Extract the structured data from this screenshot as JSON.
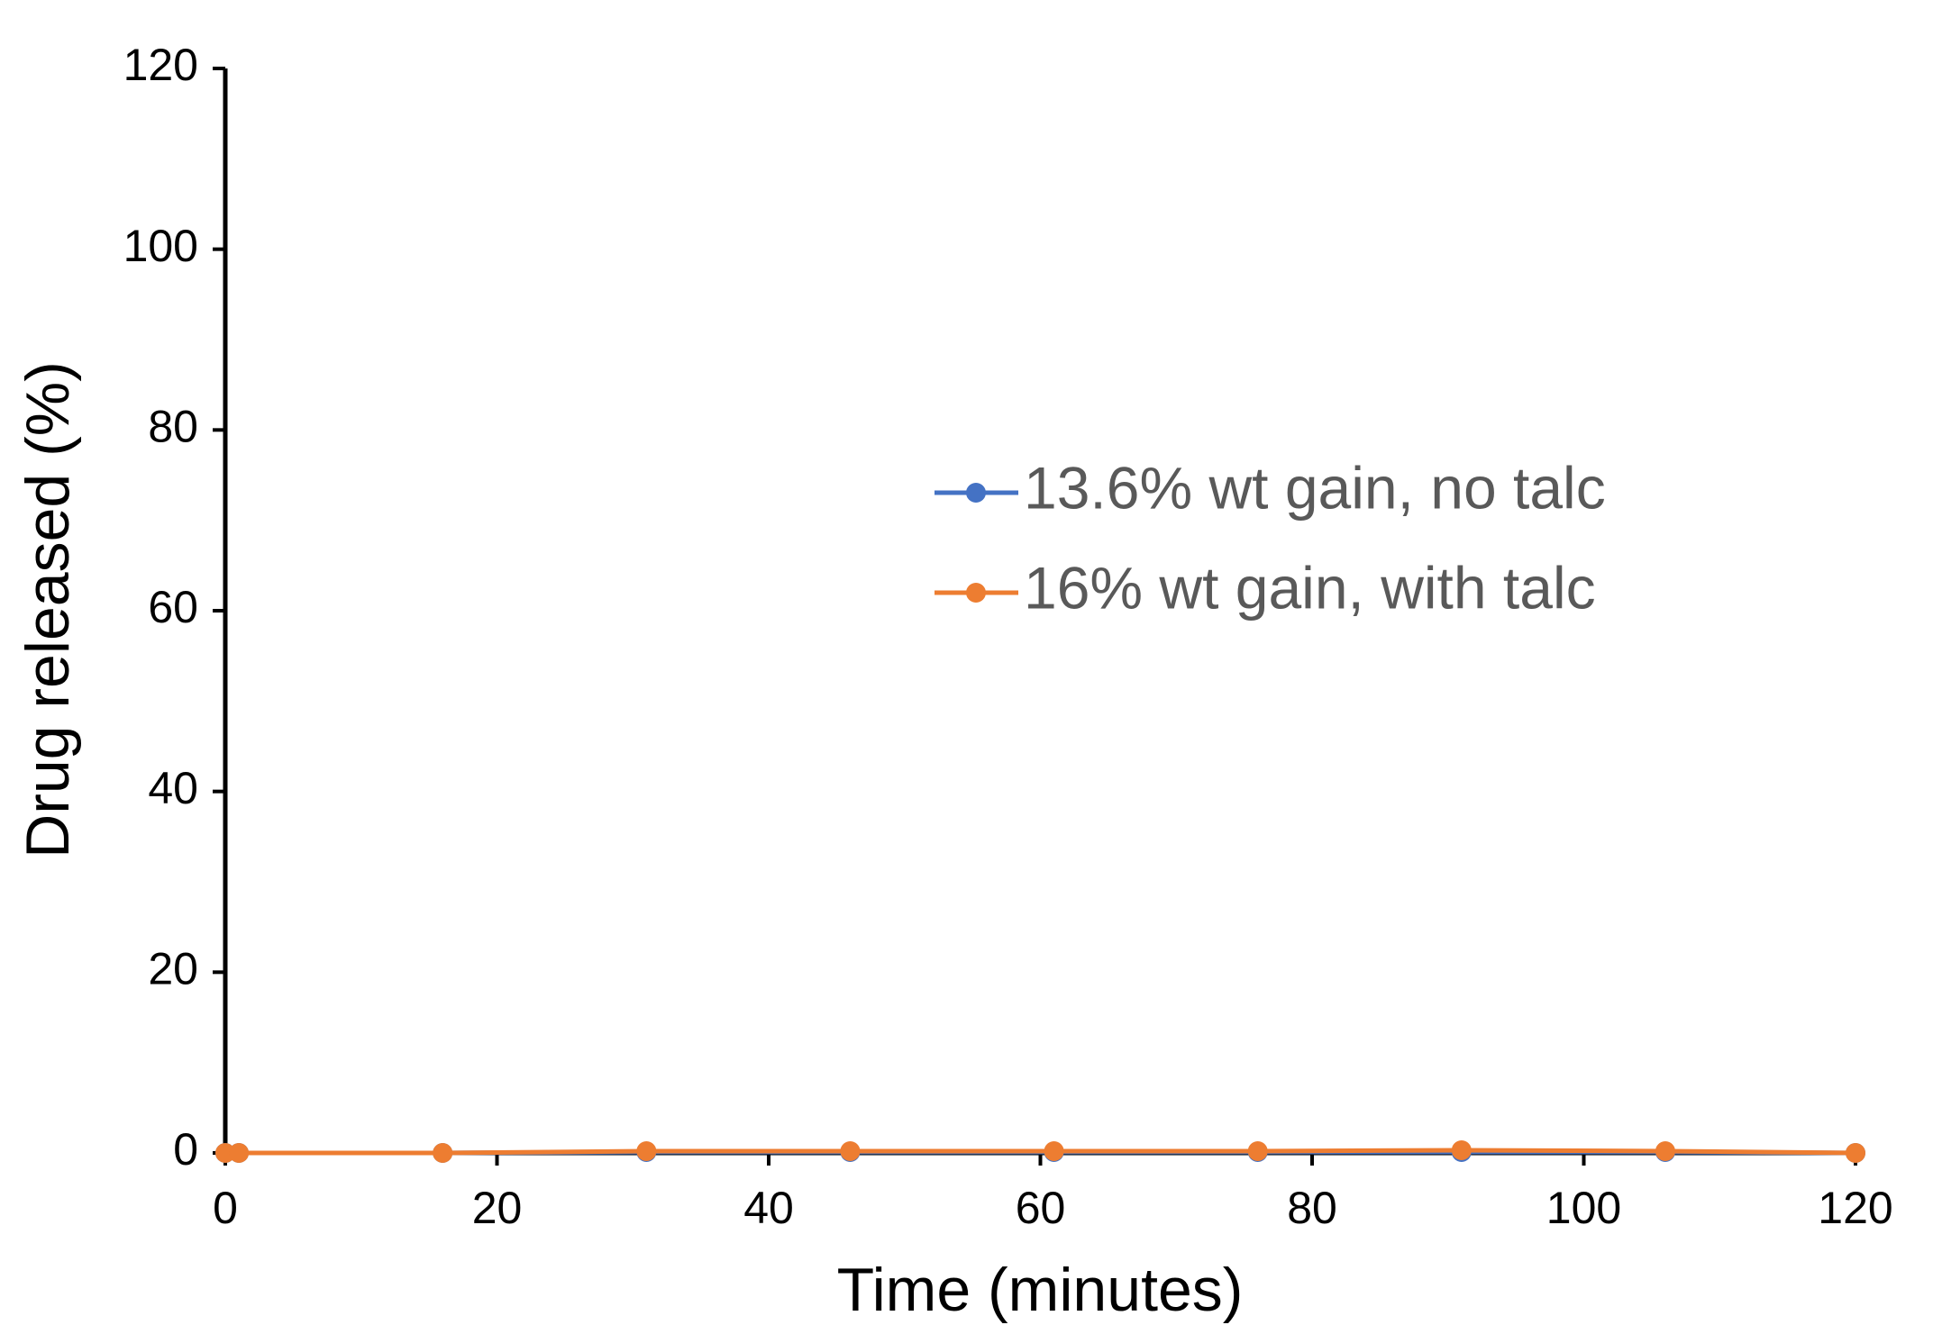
{
  "chart_data": {
    "type": "line",
    "x_label": "Time (minutes)",
    "y_label": "Drug released (%)",
    "x": [
      0,
      1,
      16,
      31,
      46,
      61,
      76,
      91,
      106,
      120
    ],
    "series": [
      {
        "name": "13.6% wt gain, no talc",
        "color": "#4472c4",
        "values": [
          0,
          0,
          0,
          0.1,
          0.1,
          0.1,
          0.1,
          0.1,
          0.1,
          0
        ]
      },
      {
        "name": "16% wt gain, with talc",
        "color": "#ed7d31",
        "values": [
          0,
          0,
          0,
          0.2,
          0.2,
          0.2,
          0.2,
          0.3,
          0.2,
          0
        ]
      }
    ],
    "xlim": [
      0,
      120
    ],
    "xticks": [
      0,
      20,
      40,
      60,
      80,
      100,
      120
    ],
    "ylim": [
      0,
      120
    ],
    "yticks": [
      0,
      20,
      40,
      60,
      80,
      100,
      120
    ],
    "grid": false,
    "legend": "right"
  }
}
